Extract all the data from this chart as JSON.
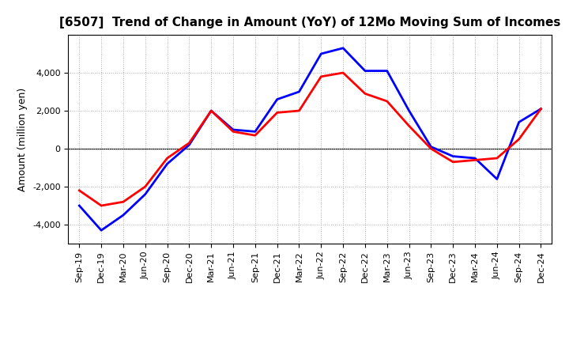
{
  "title": "[6507]  Trend of Change in Amount (YoY) of 12Mo Moving Sum of Incomes",
  "ylabel": "Amount (million yen)",
  "x_labels": [
    "Sep-19",
    "Dec-19",
    "Mar-20",
    "Jun-20",
    "Sep-20",
    "Dec-20",
    "Mar-21",
    "Jun-21",
    "Sep-21",
    "Dec-21",
    "Mar-22",
    "Jun-22",
    "Sep-22",
    "Dec-22",
    "Mar-23",
    "Jun-23",
    "Sep-23",
    "Dec-23",
    "Mar-24",
    "Jun-24",
    "Sep-24",
    "Dec-24"
  ],
  "ordinary_income": [
    -3000,
    -4300,
    -3500,
    -2400,
    -800,
    200,
    2000,
    1000,
    900,
    2600,
    3000,
    5000,
    5300,
    4100,
    4100,
    2000,
    100,
    -400,
    -500,
    -1600,
    1400,
    2100
  ],
  "net_income": [
    -2200,
    -3000,
    -2800,
    -2000,
    -500,
    300,
    2000,
    900,
    700,
    1900,
    2000,
    3800,
    4000,
    2900,
    2500,
    1200,
    0,
    -700,
    -600,
    -500,
    500,
    2100
  ],
  "ordinary_color": "#0000FF",
  "net_color": "#FF0000",
  "ylim": [
    -5000,
    6000
  ],
  "yticks": [
    -4000,
    -2000,
    0,
    2000,
    4000
  ],
  "background_color": "#FFFFFF",
  "grid_color": "#AAAAAA",
  "line_width": 2.0,
  "title_fontsize": 11,
  "ylabel_fontsize": 9,
  "tick_fontsize": 8,
  "legend_fontsize": 9
}
